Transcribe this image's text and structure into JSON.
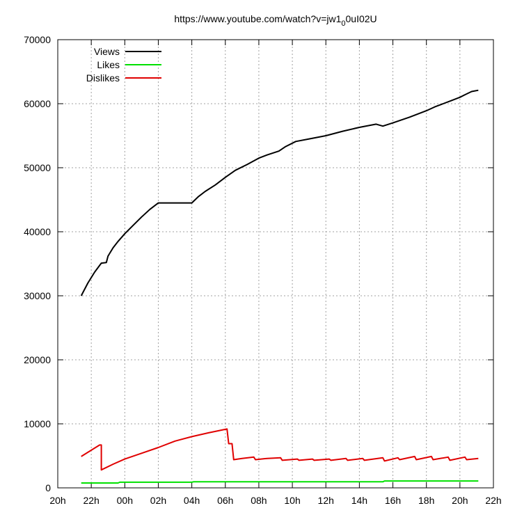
{
  "chart_data": {
    "type": "line",
    "title": "https://www.youtube.com/watch?v=jw1_0ul02U",
    "title_parts": {
      "pre": "https://www.youtube.com/watch?v=jw1",
      "sub": "0",
      "post": "0uI02U"
    },
    "xlabel": "",
    "ylabel": "",
    "xlim": [
      20,
      46
    ],
    "ylim": [
      0,
      70000
    ],
    "x_ticks": [
      20,
      22,
      24,
      26,
      28,
      30,
      32,
      34,
      36,
      38,
      40,
      42,
      44,
      46
    ],
    "x_tick_labels": [
      "20h",
      "22h",
      "00h",
      "02h",
      "04h",
      "06h",
      "08h",
      "10h",
      "12h",
      "14h",
      "16h",
      "18h",
      "20h",
      "22h"
    ],
    "y_ticks": [
      0,
      10000,
      20000,
      30000,
      40000,
      50000,
      60000,
      70000
    ],
    "y_tick_labels": [
      "0",
      "10000",
      "20000",
      "30000",
      "40000",
      "50000",
      "60000",
      "70000"
    ],
    "grid": true,
    "legend_position": "top-left",
    "series": [
      {
        "name": "Views",
        "color": "#000000",
        "x": [
          21.4,
          21.8,
          22.2,
          22.6,
          22.9,
          23.0,
          23.3,
          23.6,
          24.0,
          24.5,
          25.0,
          25.5,
          26.0,
          26.2,
          27.0,
          28.0,
          28.4,
          28.8,
          29.4,
          30.0,
          30.6,
          31.3,
          32.0,
          32.5,
          33.2,
          33.6,
          34.2,
          35.0,
          36.0,
          37.0,
          38.0,
          39.0,
          39.4,
          40.0,
          41.0,
          42.0,
          42.5,
          43.0,
          43.5,
          44.0,
          44.3,
          44.7,
          45.1
        ],
        "values": [
          30000,
          32000,
          33700,
          35100,
          35200,
          36200,
          37500,
          38500,
          39700,
          41000,
          42300,
          43500,
          44500,
          44500,
          44500,
          44500,
          45500,
          46300,
          47300,
          48500,
          49600,
          50500,
          51500,
          52000,
          52600,
          53300,
          54100,
          54500,
          55000,
          55700,
          56300,
          56800,
          56500,
          57000,
          57900,
          58900,
          59500,
          60000,
          60500,
          61000,
          61400,
          61900,
          62100
        ]
      },
      {
        "name": "Likes",
        "color": "#00e000",
        "x": [
          21.4,
          23.6,
          23.7,
          28.0,
          28.1,
          39.4,
          39.5,
          45.1
        ],
        "values": [
          760,
          760,
          880,
          880,
          950,
          950,
          1080,
          1080
        ]
      },
      {
        "name": "Dislikes",
        "color": "#e00000",
        "x": [
          21.4,
          22.5,
          22.6,
          22.6,
          23.3,
          24.0,
          25.0,
          26.0,
          27.0,
          28.0,
          29.0,
          30.1,
          30.2,
          30.4,
          30.5,
          31.0,
          31.7,
          31.8,
          32.5,
          33.3,
          33.4,
          34.3,
          34.4,
          35.2,
          35.3,
          36.2,
          36.3,
          37.2,
          37.3,
          38.2,
          38.3,
          39.4,
          39.5,
          40.3,
          40.4,
          41.3,
          41.4,
          42.3,
          42.4,
          43.3,
          43.4,
          44.3,
          44.4,
          45.1
        ],
        "values": [
          4900,
          6700,
          6700,
          2800,
          3700,
          4500,
          5400,
          6300,
          7300,
          8000,
          8600,
          9200,
          6900,
          6900,
          4400,
          4600,
          4800,
          4400,
          4600,
          4700,
          4300,
          4500,
          4300,
          4500,
          4300,
          4500,
          4300,
          4600,
          4300,
          4600,
          4300,
          4700,
          4200,
          4700,
          4400,
          4900,
          4400,
          4900,
          4400,
          4800,
          4300,
          4800,
          4400,
          4600
        ]
      }
    ]
  }
}
